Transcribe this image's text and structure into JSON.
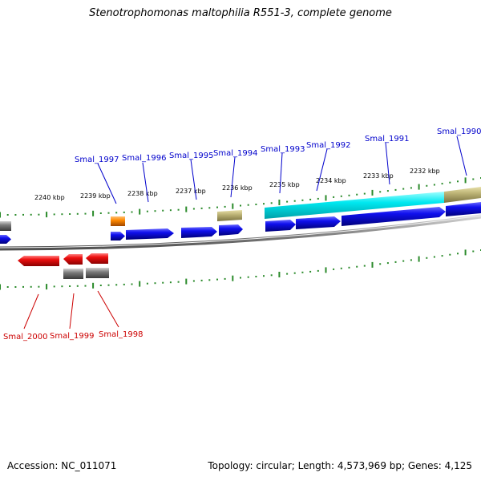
{
  "title": "Stenotrophomonas maltophilia R551-3, complete genome",
  "footer": {
    "accession": "Accession: NC_011071",
    "summary": "Topology: circular; Length: 4,573,969 bp; Genes: 4,125"
  },
  "colors": {
    "forward_gene": "#0000ee",
    "reverse_gene": "#ee0000",
    "forward_label": "#0000cc",
    "reverse_label": "#cc0000",
    "tick": "#2a8a2a",
    "backbone": "#888888",
    "highlight_cyan": "#00e5ee",
    "highlight_khaki": "#bdb476",
    "orange": "#ff8c00",
    "grey": "#777777"
  },
  "scale_labels": [
    "2240 kbp",
    "2239 kbp",
    "2238 kbp",
    "2237 kbp",
    "2236 kbp",
    "2235 kbp",
    "2234 kbp",
    "2233 kbp",
    "2232 kbp"
  ],
  "forward_genes": [
    "Smal_1997",
    "Smal_1996",
    "Smal_1995",
    "Smal_1994",
    "Smal_1993",
    "Smal_1992",
    "Smal_1991",
    "Smal_1990"
  ],
  "reverse_genes": [
    "Smal_2000",
    "Smal_1999",
    "Smal_1998"
  ]
}
